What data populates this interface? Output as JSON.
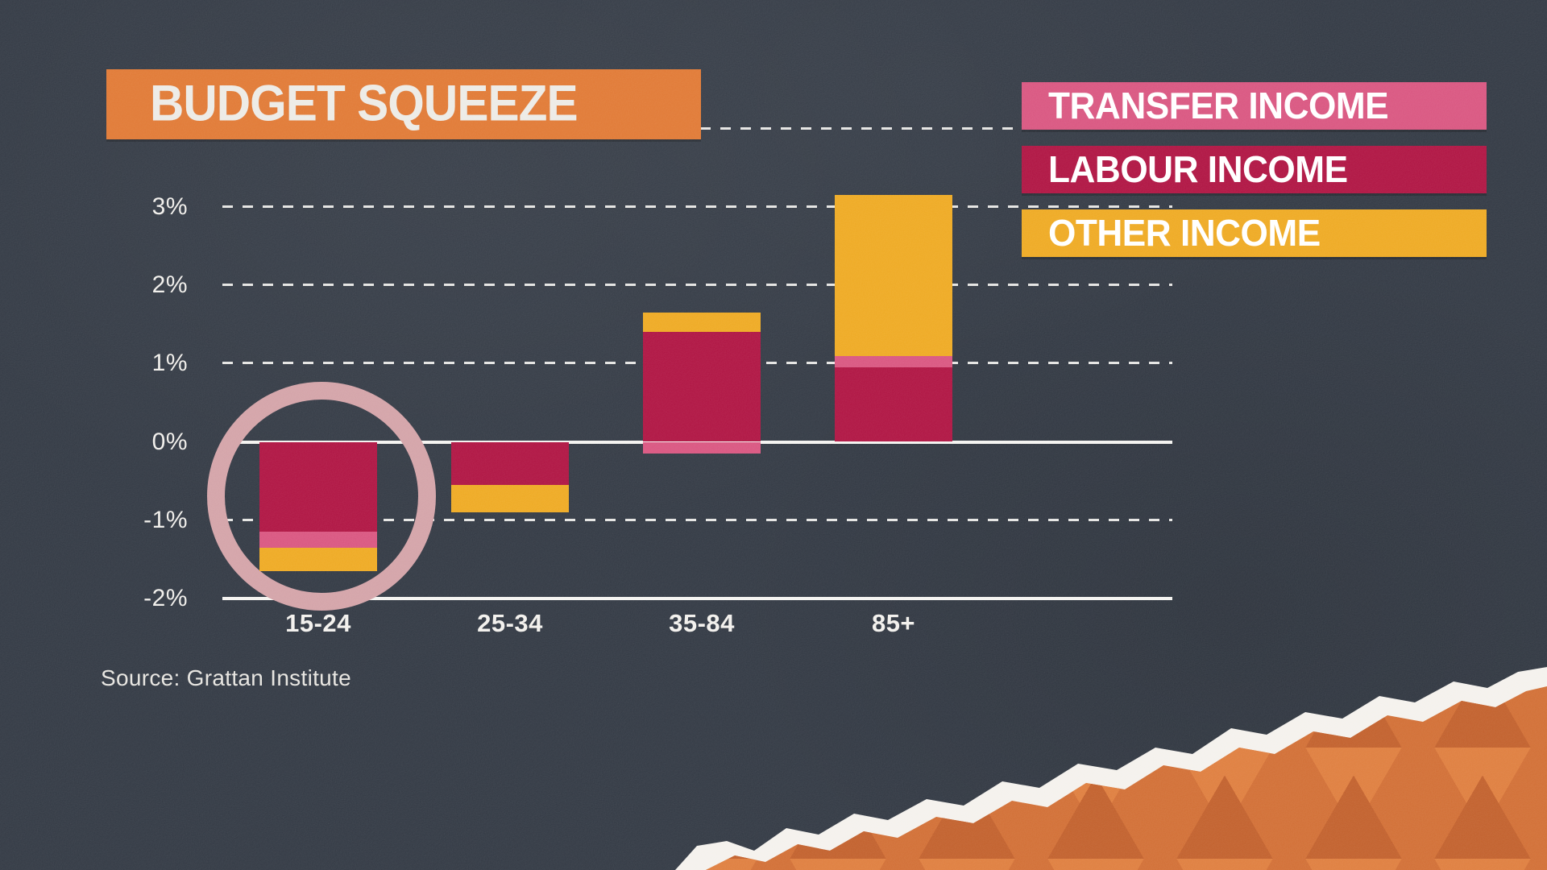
{
  "title": {
    "text": "BUDGET SQUEEZE",
    "bg_color": "#e0752e"
  },
  "legend": {
    "position": "top-right",
    "items": [
      {
        "label": "TRANSFER INCOME",
        "color": "#d8507c",
        "series_key": "transfer"
      },
      {
        "label": "LABOUR INCOME",
        "color": "#ad0c3c",
        "series_key": "labour"
      },
      {
        "label": "OTHER INCOME",
        "color": "#eea71b",
        "series_key": "other"
      }
    ]
  },
  "source": {
    "text": "Source: Grattan Institute"
  },
  "chart_data": {
    "type": "bar",
    "stacked": true,
    "categories": [
      "15-24",
      "25-34",
      "35-84",
      "85+"
    ],
    "series": [
      {
        "name": "TRANSFER INCOME",
        "key": "transfer",
        "color": "#d8507c",
        "values": [
          -0.2,
          0,
          -0.15,
          0.15
        ]
      },
      {
        "name": "LABOUR INCOME",
        "key": "labour",
        "color": "#ad0c3c",
        "values": [
          -1.15,
          -0.55,
          1.4,
          0.95
        ]
      },
      {
        "name": "OTHER INCOME",
        "key": "other",
        "color": "#eea71b",
        "values": [
          -0.3,
          -0.35,
          0.25,
          2.05
        ]
      }
    ],
    "stack_order": [
      "labour",
      "transfer",
      "other"
    ],
    "unit": "%",
    "title": "BUDGET SQUEEZE",
    "xlabel": "",
    "ylabel": "",
    "ylim": [
      -2,
      4
    ],
    "y_ticks": [
      {
        "value": 3,
        "label": "3%"
      },
      {
        "value": 2,
        "label": "2%"
      },
      {
        "value": 1,
        "label": "1%"
      },
      {
        "value": 0,
        "label": "0%"
      },
      {
        "value": -1,
        "label": "-1%"
      },
      {
        "value": -2,
        "label": "-2%"
      }
    ],
    "unlabeled_gridlines": [
      4
    ],
    "grid": "horizontal dashed gridlines; solid white lines at 0% and -2%",
    "legend_position": "top-right",
    "annotation": {
      "type": "circle-highlight",
      "category": "15-24",
      "color": "#d2a0a5"
    }
  },
  "background": {
    "color": "#2b323d",
    "texture": "paper-grain",
    "torn_corner": {
      "position": "bottom-right",
      "paper_color": "#d06a2e",
      "edge_color": "#f4f1ec"
    }
  }
}
